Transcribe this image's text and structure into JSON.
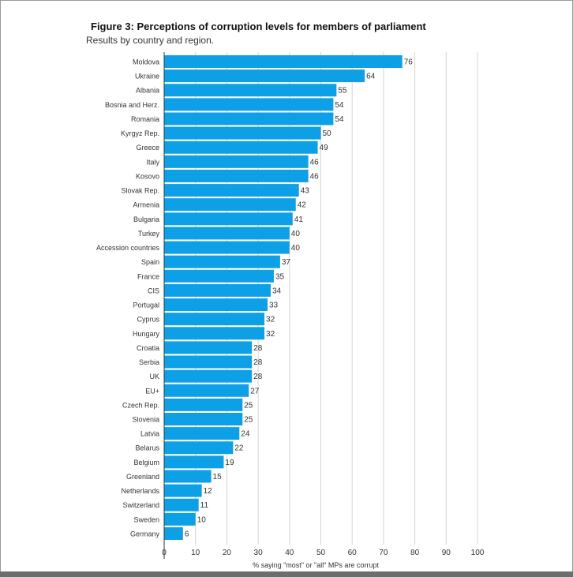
{
  "chart_data": {
    "type": "bar",
    "orientation": "horizontal",
    "title": "Figure 3: Perceptions of corruption levels for members of parliament",
    "subtitle": "Results by country and region.",
    "xlabel": "% saying \"most\" or \"all\" MPs are corrupt",
    "ylabel": "",
    "xlim": [
      0,
      100
    ],
    "ticks": [
      0,
      10,
      20,
      30,
      40,
      50,
      60,
      70,
      80,
      90,
      100
    ],
    "grid": "vertical",
    "bar_color": "#0ea0e6",
    "categories": [
      "Moldova",
      "Ukraine",
      "Albania",
      "Bosnia and Herz.",
      "Romania",
      "Kyrgyz Rep.",
      "Greece",
      "Italy",
      "Kosovo",
      "Slovak Rep.",
      "Armenia",
      "Bulgaria",
      "Turkey",
      "Accession countries",
      "Spain",
      "France",
      "CIS",
      "Portugal",
      "Cyprus",
      "Hungary",
      "Croatia",
      "Serbia",
      "UK",
      "EU+",
      "Czech Rep.",
      "Slovenia",
      "Latvia",
      "Belarus",
      "Belgium",
      "Greenland",
      "Netherlands",
      "Switzerland",
      "Sweden",
      "Germany"
    ],
    "values": [
      76,
      64,
      55,
      54,
      54,
      50,
      49,
      46,
      46,
      43,
      42,
      41,
      40,
      40,
      37,
      35,
      34,
      33,
      32,
      32,
      28,
      28,
      28,
      27,
      25,
      25,
      24,
      22,
      19,
      15,
      12,
      11,
      10,
      6
    ]
  }
}
